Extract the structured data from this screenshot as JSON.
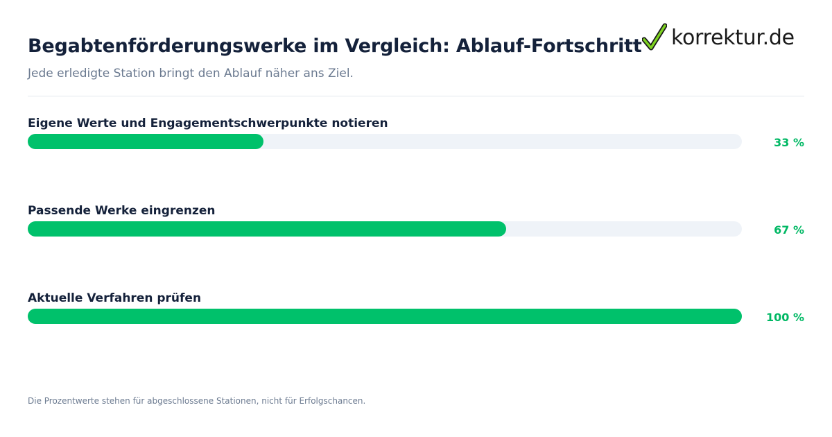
{
  "header": {
    "title": "Begabtenförderungswerke im Vergleich: Ablauf-Fortschritt",
    "subtitle": "Jede erledigte Station bringt den Ablauf näher ans Ziel."
  },
  "logo": {
    "text": "korrektur.de",
    "icon": "checkmark-icon",
    "check_color": "#7ed321"
  },
  "colors": {
    "bar_fill": "#00c16b",
    "track": "#eff3f8",
    "percent_text": "#00b864"
  },
  "chart_data": {
    "type": "bar",
    "orientation": "horizontal",
    "categories": [
      "Eigene Werte und Engagementschwerpunkte notieren",
      "Passende Werke eingrenzen",
      "Aktuelle Verfahren prüfen"
    ],
    "values": [
      33,
      67,
      100
    ],
    "value_labels": [
      "33 %",
      "67 %",
      "100 %"
    ],
    "xlim": [
      0,
      100
    ],
    "grid": false,
    "legend": "none"
  },
  "footnote": "Die Prozentwerte stehen für abgeschlossene Stationen, nicht für Erfolgschancen."
}
